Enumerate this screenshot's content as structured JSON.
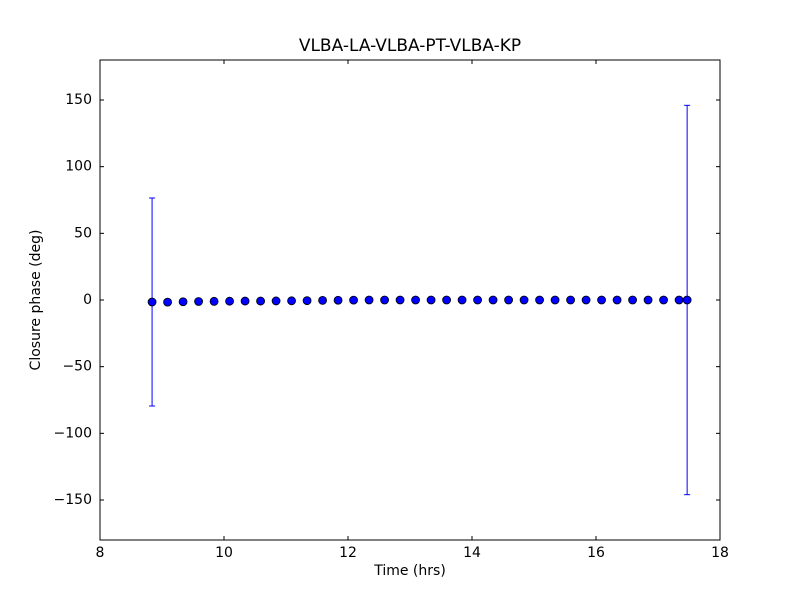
{
  "chart_data": {
    "type": "errorbar-scatter",
    "title": "VLBA-LA-VLBA-PT-VLBA-KP",
    "x_label": "Time (hrs)",
    "y_label": "Closure phase (deg)",
    "xlim": [
      8,
      18
    ],
    "xticks": [
      8,
      10,
      12,
      14,
      16,
      18
    ],
    "ylim": [
      -180,
      180
    ],
    "yticks": [
      {
        "value": -150,
        "label": "−150"
      },
      {
        "value": -100,
        "label": "−100"
      },
      {
        "value": -50,
        "label": "−50"
      },
      0,
      50,
      100,
      150
    ],
    "color": "#0000ff",
    "x": [
      8.84,
      9.09,
      9.34,
      9.59,
      9.84,
      10.09,
      10.34,
      10.59,
      10.84,
      11.09,
      11.34,
      11.59,
      11.84,
      12.09,
      12.34,
      12.59,
      12.84,
      13.09,
      13.34,
      13.59,
      13.84,
      14.09,
      14.34,
      14.59,
      14.84,
      15.09,
      15.34,
      15.59,
      15.84,
      16.09,
      16.34,
      16.59,
      16.84,
      17.09,
      17.34,
      17.47
    ],
    "values": [
      -1.5,
      -1.6,
      -1.3,
      -1.1,
      -1.0,
      -0.9,
      -0.8,
      -0.8,
      -0.7,
      -0.6,
      -0.5,
      -0.3,
      -0.2,
      -0.1,
      0,
      0,
      0,
      0,
      0,
      0,
      0,
      0,
      0,
      0,
      0,
      0,
      0,
      0,
      0,
      0,
      0,
      0,
      0,
      0,
      0,
      0
    ],
    "errors": [
      78,
      0.5,
      0.5,
      0.5,
      0.5,
      0.5,
      0.5,
      0.5,
      0.5,
      0.5,
      0.5,
      0.5,
      0.5,
      0.5,
      0.5,
      0.5,
      0.5,
      0.5,
      0.5,
      0.5,
      0.5,
      0.5,
      0.5,
      0.5,
      0.5,
      0.5,
      0.5,
      0.5,
      0.5,
      0.5,
      0.5,
      0.5,
      0.5,
      0.5,
      0.5,
      146
    ]
  }
}
